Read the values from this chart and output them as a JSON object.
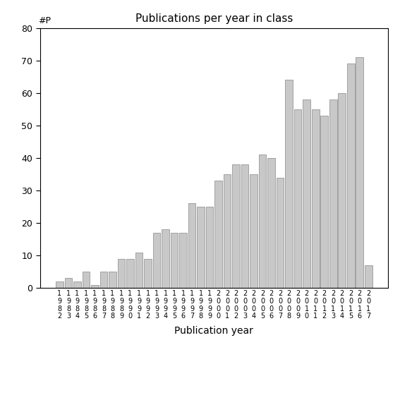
{
  "title": "Publications per year in class",
  "xlabel": "Publication year",
  "ylabel": "#P",
  "bar_color": "#c8c8c8",
  "bar_edgecolor": "#888888",
  "ylim": [
    0,
    80
  ],
  "yticks": [
    0,
    10,
    20,
    30,
    40,
    50,
    60,
    70,
    80
  ],
  "years": [
    1982,
    1983,
    1984,
    1985,
    1986,
    1987,
    1988,
    1989,
    1990,
    1991,
    1992,
    1993,
    1994,
    1995,
    1996,
    1997,
    1998,
    1999,
    2000,
    2001,
    2002,
    2003,
    2004,
    2005,
    2006,
    2007,
    2008,
    2009,
    2010,
    2011,
    2012,
    2013,
    2014,
    2015,
    2016,
    2017
  ],
  "values": [
    2,
    3,
    2,
    5,
    1,
    5,
    5,
    9,
    9,
    11,
    9,
    17,
    18,
    17,
    17,
    26,
    25,
    25,
    33,
    35,
    38,
    38,
    35,
    41,
    40,
    34,
    64,
    55,
    58,
    55,
    53,
    58,
    60,
    69,
    71,
    7
  ],
  "tick_label_fontsize": 7,
  "title_fontsize": 11,
  "xlabel_fontsize": 10,
  "background_color": "#ffffff"
}
